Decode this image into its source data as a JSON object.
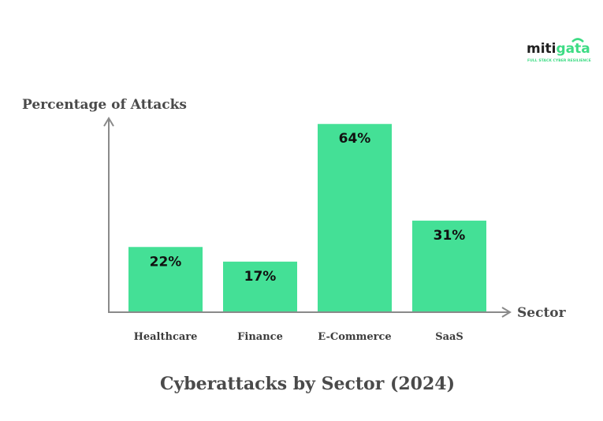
{
  "brand": {
    "name_dark": "miti",
    "name_accent": "gata",
    "tagline": "FULL STACK CYBER RESILIENCE",
    "accent_color": "#3ddc84",
    "dark_color": "#1f1f1f"
  },
  "chart_data": {
    "type": "bar",
    "title": "Cyberattacks by Sector (2024)",
    "xlabel": "Sector",
    "ylabel": "Percentage of Attacks",
    "categories": [
      "Healthcare",
      "Finance",
      "E-Commerce",
      "SaaS"
    ],
    "values": [
      22,
      17,
      64,
      31
    ],
    "value_labels": [
      "22%",
      "17%",
      "64%",
      "31%"
    ],
    "ylim": [
      0,
      100
    ],
    "grid": false,
    "bar_color": "#44e096",
    "axis_color": "#8a8a8a"
  }
}
